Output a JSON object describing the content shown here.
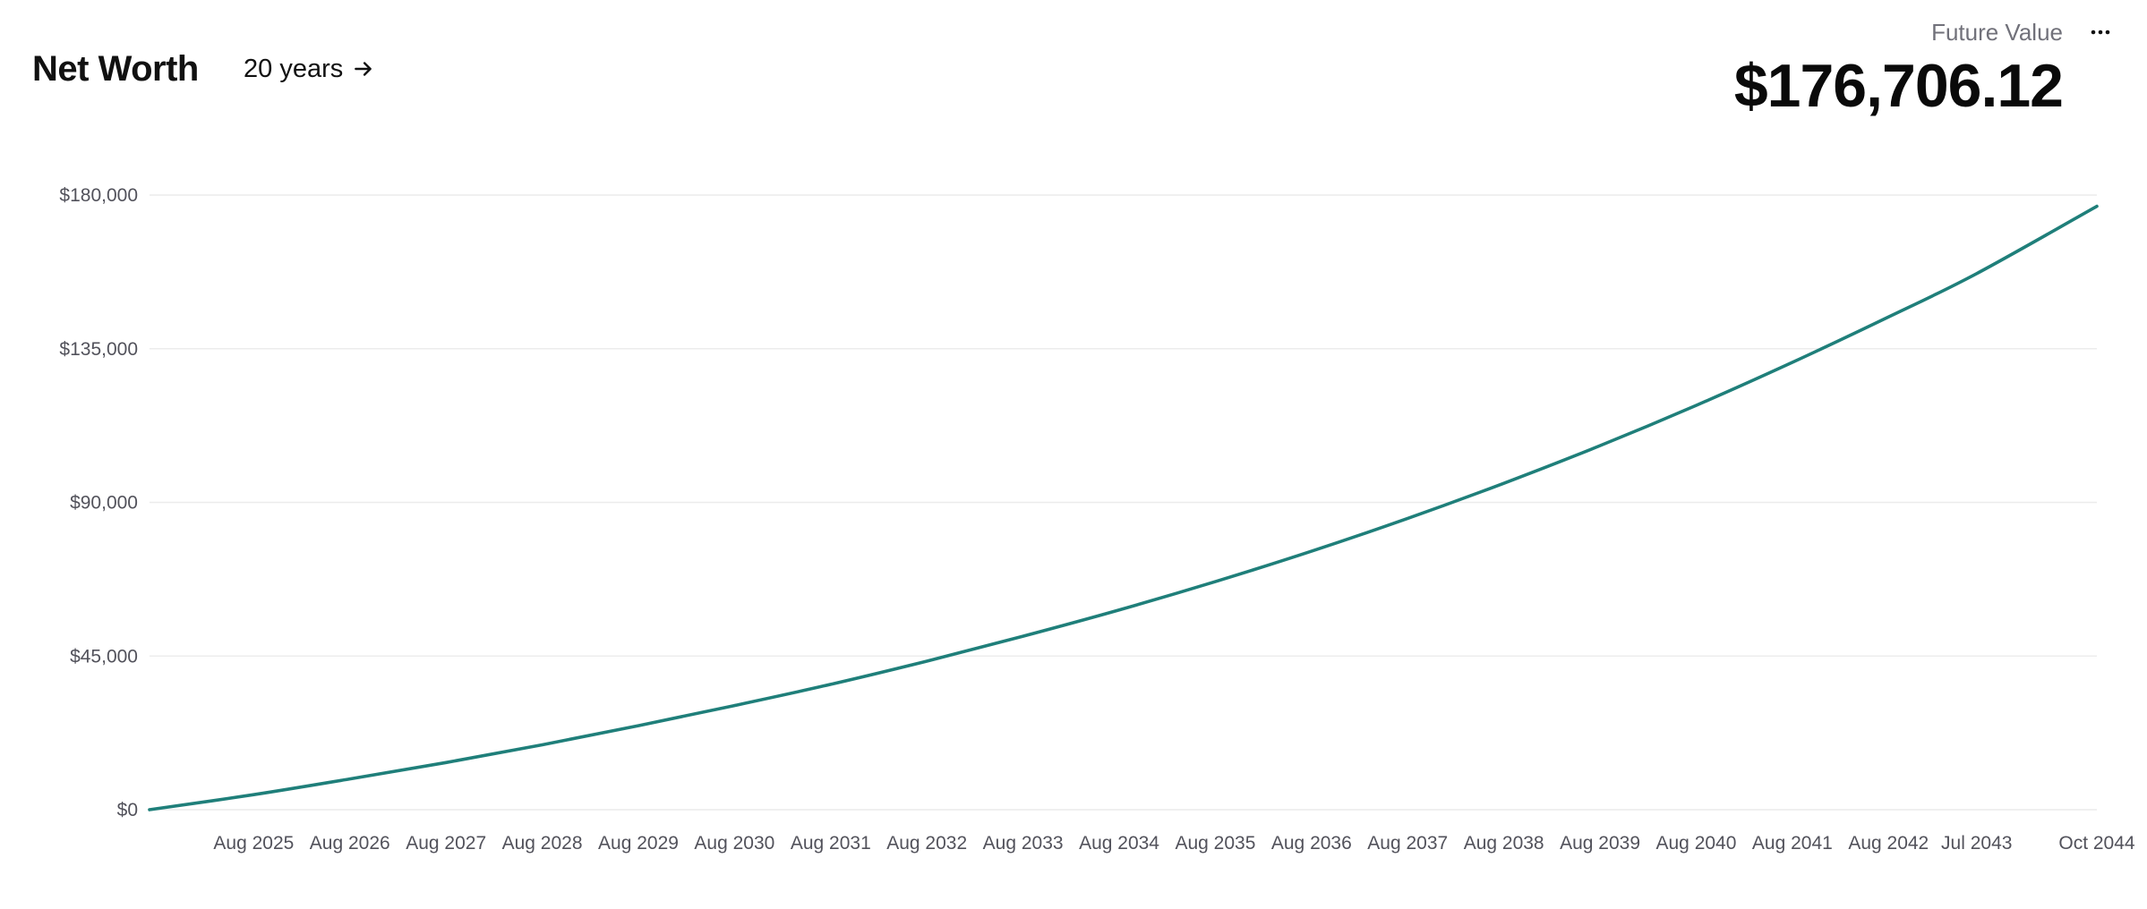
{
  "header": {
    "title": "Net Worth",
    "range_label": "20 years",
    "future_value_label": "Future Value",
    "future_value": "$176,706.12"
  },
  "colors": {
    "line": "#1f7f7a",
    "grid": "#ececec",
    "tick_text": "#52525b",
    "text": "#111111",
    "muted": "#71717a"
  },
  "icons": {
    "range_arrow": "arrow-right-icon",
    "more": "more-horizontal-icon"
  },
  "chart_data": {
    "type": "line",
    "title": "Net Worth",
    "xlabel": "",
    "ylabel": "",
    "grid": true,
    "legend": "none",
    "ylim": [
      0,
      180000
    ],
    "y_ticks": [
      {
        "value": 0,
        "label": "$0"
      },
      {
        "value": 45000,
        "label": "$45,000"
      },
      {
        "value": 90000,
        "label": "$90,000"
      },
      {
        "value": 135000,
        "label": "$135,000"
      },
      {
        "value": 180000,
        "label": "$180,000"
      }
    ],
    "x_start": "Jul 2024",
    "x_end": "Oct 2044",
    "x_ticks": [
      {
        "date": "Aug 2025",
        "label": "Aug 2025"
      },
      {
        "date": "Aug 2026",
        "label": "Aug 2026"
      },
      {
        "date": "Aug 2027",
        "label": "Aug 2027"
      },
      {
        "date": "Aug 2028",
        "label": "Aug 2028"
      },
      {
        "date": "Aug 2029",
        "label": "Aug 2029"
      },
      {
        "date": "Aug 2030",
        "label": "Aug 2030"
      },
      {
        "date": "Aug 2031",
        "label": "Aug 2031"
      },
      {
        "date": "Aug 2032",
        "label": "Aug 2032"
      },
      {
        "date": "Aug 2033",
        "label": "Aug 2033"
      },
      {
        "date": "Aug 2034",
        "label": "Aug 2034"
      },
      {
        "date": "Aug 2035",
        "label": "Aug 2035"
      },
      {
        "date": "Aug 2036",
        "label": "Aug 2036"
      },
      {
        "date": "Aug 2037",
        "label": "Aug 2037"
      },
      {
        "date": "Aug 2038",
        "label": "Aug 2038"
      },
      {
        "date": "Aug 2039",
        "label": "Aug 2039"
      },
      {
        "date": "Aug 2040",
        "label": "Aug 2040"
      },
      {
        "date": "Aug 2041",
        "label": "Aug 2041"
      },
      {
        "date": "Aug 2042",
        "label": "Aug 2042"
      },
      {
        "date": "Jul 2043",
        "label": "Jul 2043"
      },
      {
        "date": "Oct 2044",
        "label": "Oct 2044"
      }
    ],
    "series": [
      {
        "points": [
          {
            "x": "Jul 2024",
            "y": 0
          },
          {
            "x": "Aug 2025",
            "y": 4400
          },
          {
            "x": "Aug 2026",
            "y": 9000
          },
          {
            "x": "Aug 2027",
            "y": 13800
          },
          {
            "x": "Aug 2028",
            "y": 19000
          },
          {
            "x": "Aug 2029",
            "y": 24600
          },
          {
            "x": "Aug 2030",
            "y": 30500
          },
          {
            "x": "Aug 2031",
            "y": 36700
          },
          {
            "x": "Aug 2032",
            "y": 43500
          },
          {
            "x": "Aug 2033",
            "y": 50800
          },
          {
            "x": "Aug 2034",
            "y": 58500
          },
          {
            "x": "Aug 2035",
            "y": 66800
          },
          {
            "x": "Aug 2036",
            "y": 75700
          },
          {
            "x": "Aug 2037",
            "y": 85300
          },
          {
            "x": "Aug 2038",
            "y": 95600
          },
          {
            "x": "Aug 2039",
            "y": 106600
          },
          {
            "x": "Aug 2040",
            "y": 118400
          },
          {
            "x": "Aug 2041",
            "y": 131000
          },
          {
            "x": "Aug 2042",
            "y": 144300
          },
          {
            "x": "Jul 2043",
            "y": 157000
          },
          {
            "x": "Oct 2044",
            "y": 176706.12
          }
        ]
      }
    ]
  }
}
